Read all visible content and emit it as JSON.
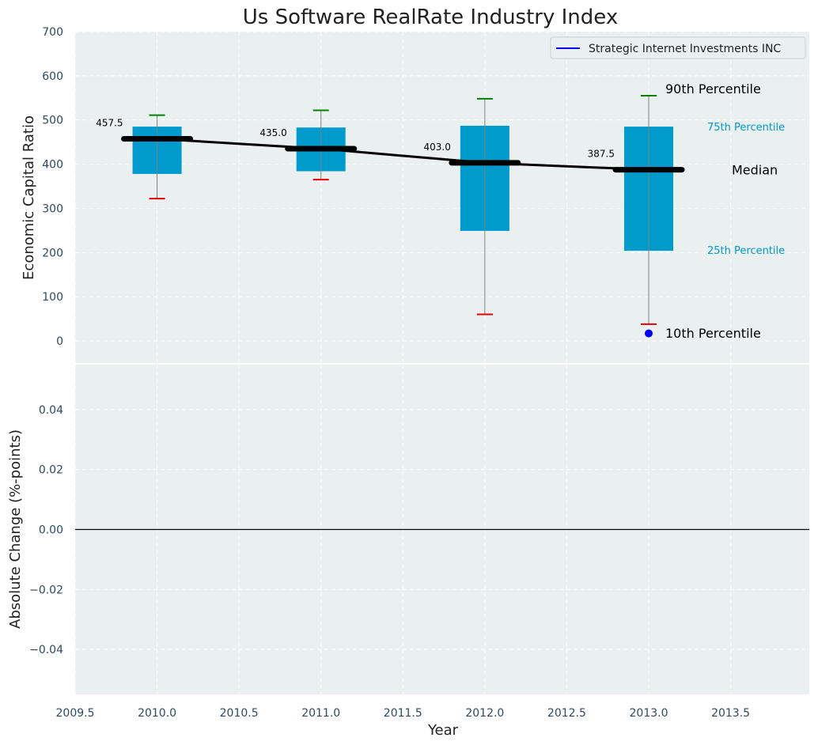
{
  "chart_data": {
    "type": "box",
    "title": "Us Software RealRate Industry Index",
    "colors": {
      "box": "#009acd",
      "whisker_top": "#008000",
      "whisker_bottom": "#e00000",
      "median": "#000000",
      "company": "#0000ff",
      "panel_bg": "#eaeff0"
    },
    "top_panel": {
      "ylabel": "Economic Capital Ratio",
      "ylim": [
        -50,
        700
      ],
      "yticks": [
        "0",
        "100",
        "200",
        "300",
        "400",
        "500",
        "600",
        "700"
      ],
      "boxes": [
        {
          "x": 2010,
          "p10": 322,
          "p25": 378,
          "median": 457.5,
          "p75": 485,
          "p90": 511,
          "median_label": "457.5"
        },
        {
          "x": 2011,
          "p10": 365,
          "p25": 384,
          "median": 435.0,
          "p75": 483,
          "p90": 522,
          "median_label": "435.0"
        },
        {
          "x": 2012,
          "p10": 60,
          "p25": 249,
          "median": 403.0,
          "p75": 487,
          "p90": 548,
          "median_label": "403.0"
        },
        {
          "x": 2013,
          "p10": 38,
          "p25": 204,
          "median": 387.5,
          "p75": 485,
          "p90": 555,
          "median_label": "387.5"
        }
      ],
      "company_points": [
        {
          "x": 2013,
          "y": 17
        }
      ],
      "annotations": {
        "p90": "90th Percentile",
        "p75": "75th Percentile",
        "median": "Median",
        "p25": "25th Percentile",
        "p10": "10th Percentile"
      },
      "legend": {
        "label": "Strategic Internet Investments INC",
        "placement": "upper right"
      }
    },
    "bottom_panel": {
      "ylabel": "Absolute Change (%-points)",
      "ylim": [
        -0.055,
        0.055
      ],
      "yticks": [
        -0.04,
        -0.02,
        0.0,
        0.02,
        0.04
      ],
      "ytick_labels": [
        "−0.04",
        "−0.02",
        "0.00",
        "0.02",
        "0.04"
      ],
      "zero_line": 0
    },
    "x_axis": {
      "xlabel": "Year",
      "xlim": [
        2009.5,
        2013.98
      ],
      "xticks": [
        2009.5,
        2010.0,
        2010.5,
        2011.0,
        2011.5,
        2012.0,
        2012.5,
        2013.0,
        2013.5
      ],
      "xtick_labels": [
        "2009.5",
        "2010.0",
        "2010.5",
        "2011.0",
        "2011.5",
        "2012.0",
        "2012.5",
        "2013.0",
        "2013.5"
      ]
    },
    "grid": true
  }
}
